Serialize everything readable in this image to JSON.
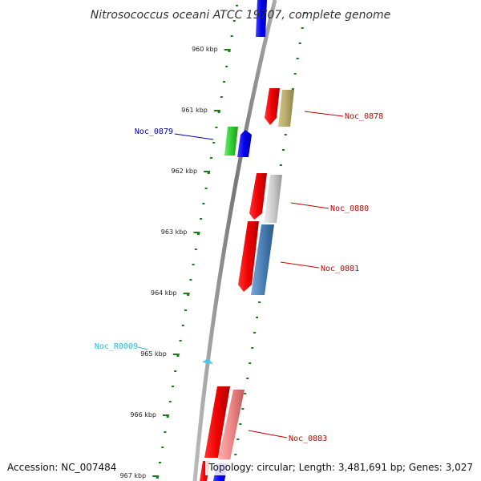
{
  "title": "Nitrosococcus oceani ATCC 19707, complete genome",
  "footer": {
    "accession": "Accession: NC_007484",
    "topology": "Topology: circular; Length: 3,481,691 bp; Genes: 3,027"
  },
  "ticks": [
    {
      "label": "960 kbp",
      "kbp": 960
    },
    {
      "label": "961 kbp",
      "kbp": 961
    },
    {
      "label": "962 kbp",
      "kbp": 962
    },
    {
      "label": "963 kbp",
      "kbp": 963
    },
    {
      "label": "964 kbp",
      "kbp": 964
    },
    {
      "label": "965 kbp",
      "kbp": 965
    },
    {
      "label": "966 kbp",
      "kbp": 966
    },
    {
      "label": "967 kbp",
      "kbp": 967
    }
  ],
  "genes": [
    {
      "label": "Noc_0878",
      "color": "#cc0000"
    },
    {
      "label": "Noc_0879",
      "color": "#0000aa"
    },
    {
      "label": "Noc_0880",
      "color": "#cc0000"
    },
    {
      "label": "Noc_0881",
      "color": "#cc0000"
    },
    {
      "label": "Noc_R0009",
      "color": "#22bbdd"
    },
    {
      "label": "Noc_0883",
      "color": "#cc0000"
    }
  ],
  "colors": {
    "backbone": "#888888",
    "tick_green": "#1a7a1a",
    "gene_red": "#ff0000",
    "gene_blue": "#0000ff",
    "gene_green": "#33cc33",
    "gene_olive": "#b5aa6a",
    "gene_grey": "#c8c8c8",
    "gene_steel": "#4a7fb5",
    "gene_pink": "#ee8888",
    "rna_cyan": "#44ccee"
  }
}
